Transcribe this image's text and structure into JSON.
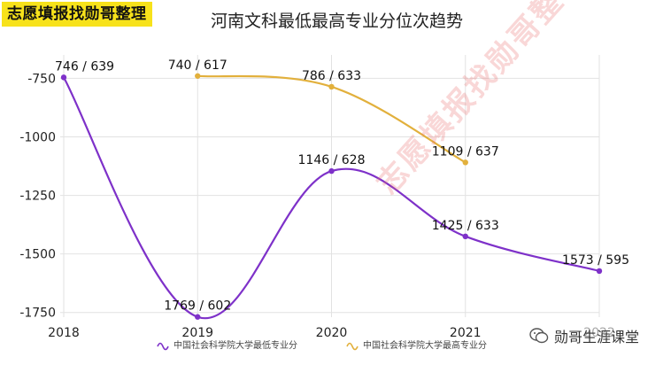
{
  "header": {
    "brand": "志愿填报找勋哥整理",
    "title": "河南文科最低最高专业分位次趋势"
  },
  "watermark": "志愿填报找勋哥整理",
  "footer": {
    "wechat_label": "勋哥生涯课堂",
    "wechat_icon": "wechat-icon"
  },
  "chart_data": {
    "type": "line",
    "title": "河南文科最低最高专业分位次趋势",
    "x": [
      2018,
      2019,
      2020,
      2021,
      2022
    ],
    "xticks": [
      "2018",
      "2019",
      "2020",
      "2021",
      "2022"
    ],
    "ylim": [
      -1770,
      -650
    ],
    "yticks": [
      -750,
      -1000,
      -1250,
      -1500,
      -1750
    ],
    "ytick_labels": [
      "-750",
      "-1000",
      "-1250",
      "-1500",
      "-1750"
    ],
    "grid": true,
    "legend_position": "bottom",
    "series": [
      {
        "name": "中国社会科学院大学最低专业分",
        "color": "#7e31c9",
        "points": [
          {
            "x": 2018,
            "y": -746,
            "label": "746 / 639"
          },
          {
            "x": 2019,
            "y": -1769,
            "label": "1769 / 602"
          },
          {
            "x": 2020,
            "y": -1146,
            "label": "1146 / 628"
          },
          {
            "x": 2021,
            "y": -1425,
            "label": "1425 / 633"
          },
          {
            "x": 2022,
            "y": -1573,
            "label": "1573 / 595"
          }
        ]
      },
      {
        "name": "中国社会科学院大学最高专业分",
        "color": "#e2b03c",
        "points": [
          {
            "x": 2019,
            "y": -740,
            "label": "740 / 617"
          },
          {
            "x": 2020,
            "y": -786,
            "label": "786 / 633"
          },
          {
            "x": 2021,
            "y": -1109,
            "label": "1109 / 637"
          }
        ]
      }
    ]
  }
}
